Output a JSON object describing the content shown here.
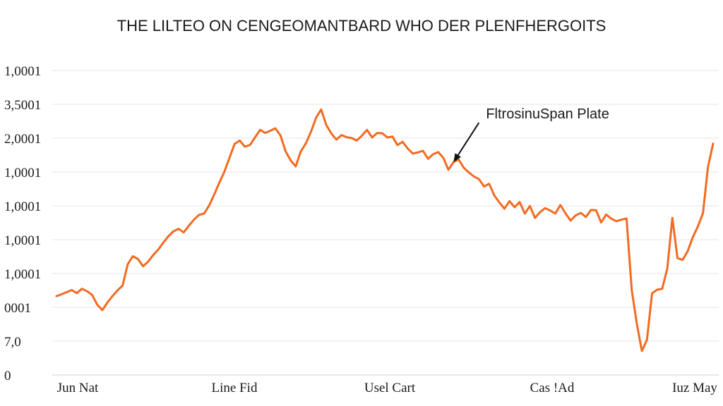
{
  "chart_data": {
    "type": "line",
    "title": "THE LILTEO ON CENGEOMANTBARD WHO DER PLENFHERGOITS",
    "xlabel": "",
    "ylabel": "",
    "grid": true,
    "y_tick_labels": [
      "1,0001",
      "3,5001",
      "2,0001",
      "1,0001",
      "1,0001",
      "1,0001",
      "1,0001",
      "0001",
      "7,0",
      "0"
    ],
    "x_tick_labels": [
      "Jun Nat",
      "Line Fid",
      "Usel Cart",
      "Cas !Ad",
      "Iuz May"
    ],
    "annotation": {
      "text": "FltrosinuSpan Plate",
      "index": 78
    },
    "series": [
      {
        "color": "#f26b21",
        "values": [
          25.9,
          26.5,
          27.2,
          27.9,
          26.9,
          28.3,
          27.5,
          26.3,
          23.1,
          21.3,
          23.8,
          25.9,
          27.8,
          29.4,
          36.4,
          39.0,
          38.1,
          35.7,
          37.2,
          39.4,
          41.2,
          43.5,
          45.6,
          47.2,
          48.0,
          46.8,
          49.0,
          51.0,
          52.6,
          53.0,
          55.7,
          59.3,
          63.2,
          66.8,
          71.4,
          75.9,
          77.0,
          75.0,
          75.5,
          78.0,
          80.5,
          79.5,
          80.2,
          81.0,
          78.7,
          73.5,
          70.5,
          68.5,
          73.4,
          76.1,
          79.9,
          84.5,
          87.2,
          82.1,
          79.3,
          77.3,
          78.8,
          78.1,
          77.8,
          77.0,
          78.6,
          80.5,
          78.0,
          79.5,
          79.4,
          78.0,
          78.3,
          75.5,
          76.6,
          74.4,
          72.7,
          73.1,
          73.6,
          71.0,
          72.5,
          73.2,
          71.3,
          67.4,
          69.9,
          70.8,
          68.1,
          66.5,
          65.2,
          64.3,
          61.9,
          62.8,
          59.0,
          56.7,
          54.6,
          57.1,
          55.1,
          56.8,
          53.0,
          55.5,
          51.6,
          53.5,
          54.8,
          54.0,
          53.0,
          55.8,
          53.1,
          50.7,
          52.4,
          53.2,
          51.9,
          54.2,
          54.1,
          50.1,
          52.7,
          51.3,
          50.5,
          51.0,
          51.4,
          28.0,
          16.9,
          7.9,
          11.5,
          26.8,
          28.0,
          28.3,
          35.0,
          51.6,
          38.4,
          37.8,
          40.7,
          45.2,
          48.8,
          53.1,
          68.4,
          76.0
        ]
      }
    ]
  }
}
